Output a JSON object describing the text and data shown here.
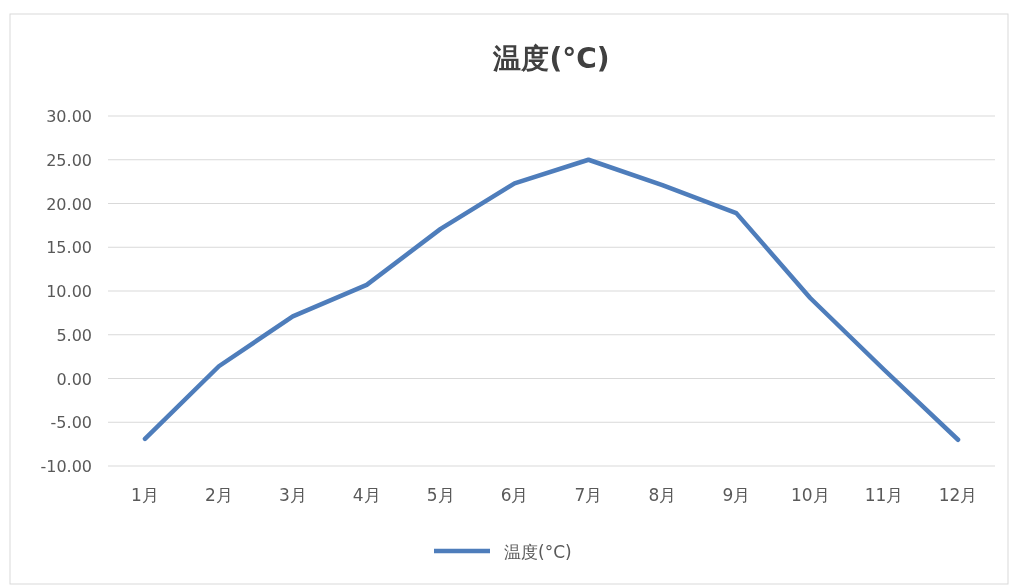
{
  "chart_data": {
    "type": "line",
    "title": "温度(°C)",
    "categories": [
      "1月",
      "2月",
      "3月",
      "4月",
      "5月",
      "6月",
      "7月",
      "8月",
      "9月",
      "10月",
      "11月",
      "12月"
    ],
    "series": [
      {
        "name": "温度(°C)",
        "color": "#4e7dbb",
        "values": [
          -6.9,
          1.4,
          7.1,
          10.7,
          17.1,
          22.3,
          25.0,
          22.1,
          18.9,
          9.2,
          1.0,
          -7.0
        ]
      }
    ],
    "ylim": [
      -10,
      30
    ],
    "yticks": [
      {
        "value": -10,
        "label": "-10.00"
      },
      {
        "value": -5,
        "label": "-5.00"
      },
      {
        "value": 0,
        "label": "0.00"
      },
      {
        "value": 5,
        "label": "5.00"
      },
      {
        "value": 10,
        "label": "10.00"
      },
      {
        "value": 15,
        "label": "15.00"
      },
      {
        "value": 20,
        "label": "20.00"
      },
      {
        "value": 25,
        "label": "25.00"
      },
      {
        "value": 30,
        "label": "30.00"
      }
    ],
    "grid": "y",
    "legend": "bottom",
    "marker": "none",
    "line_style": "solid"
  }
}
